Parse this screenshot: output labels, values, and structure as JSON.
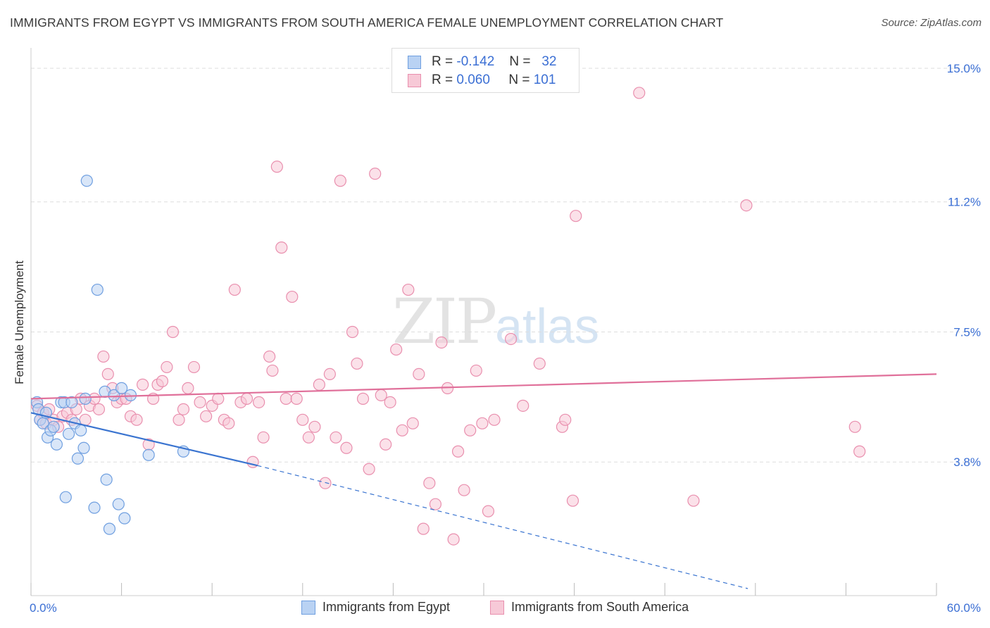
{
  "header": {
    "title": "IMMIGRANTS FROM EGYPT VS IMMIGRANTS FROM SOUTH AMERICA FEMALE UNEMPLOYMENT CORRELATION CHART",
    "source": "Source: ZipAtlas.com"
  },
  "watermark": {
    "zip": "ZIP",
    "atlas": "atlas"
  },
  "legend_top": {
    "rows": [
      {
        "r_label": "R =",
        "r_value": "-0.142",
        "n_label": "N =",
        "n_value": "32"
      },
      {
        "r_label": "R =",
        "r_value": "0.060",
        "n_label": "N =",
        "n_value": "101"
      }
    ]
  },
  "legend_bottom": {
    "items": [
      {
        "label": "Immigrants from Egypt"
      },
      {
        "label": "Immigrants from South America"
      }
    ]
  },
  "colors": {
    "egypt_fill": "#b9d2f3",
    "egypt_stroke": "#6f9fe0",
    "egypt_line": "#3a74d0",
    "sa_fill": "#f7c9d7",
    "sa_stroke": "#e98fae",
    "sa_line": "#e0709a",
    "grid": "#dddddd",
    "tick_label": "#3b6fd4"
  },
  "chart_data": {
    "type": "scatter",
    "title": "IMMIGRANTS FROM EGYPT VS IMMIGRANTS FROM SOUTH AMERICA FEMALE UNEMPLOYMENT CORRELATION CHART",
    "xlabel": "",
    "ylabel": "Female Unemployment",
    "xlim": [
      0,
      60
    ],
    "ylim": [
      0,
      15.5
    ],
    "x_tick_labels": [
      "0.0%",
      "60.0%"
    ],
    "y_ticks": [
      3.8,
      7.5,
      11.2,
      15.0
    ],
    "y_tick_labels": [
      "3.8%",
      "7.5%",
      "11.2%",
      "15.0%"
    ],
    "grid": true,
    "legend_position": "bottom",
    "series": [
      {
        "name": "Immigrants from Egypt",
        "points": [
          [
            0.4,
            5.5
          ],
          [
            0.5,
            5.3
          ],
          [
            0.6,
            5.0
          ],
          [
            0.8,
            4.9
          ],
          [
            1.0,
            5.2
          ],
          [
            1.1,
            4.5
          ],
          [
            1.3,
            4.7
          ],
          [
            1.5,
            4.8
          ],
          [
            1.7,
            4.3
          ],
          [
            2.0,
            5.5
          ],
          [
            2.2,
            5.5
          ],
          [
            2.5,
            4.6
          ],
          [
            2.7,
            5.5
          ],
          [
            2.9,
            4.9
          ],
          [
            3.1,
            3.9
          ],
          [
            3.3,
            4.7
          ],
          [
            3.5,
            4.2
          ],
          [
            3.7,
            11.8
          ],
          [
            2.3,
            2.8
          ],
          [
            4.2,
            2.5
          ],
          [
            4.4,
            8.7
          ],
          [
            4.9,
            5.8
          ],
          [
            5.0,
            3.3
          ],
          [
            5.2,
            1.9
          ],
          [
            5.5,
            5.7
          ],
          [
            5.8,
            2.6
          ],
          [
            6.0,
            5.9
          ],
          [
            6.2,
            2.2
          ],
          [
            6.6,
            5.7
          ],
          [
            7.8,
            4.0
          ],
          [
            10.1,
            4.1
          ],
          [
            3.6,
            5.6
          ]
        ],
        "trend": {
          "x": [
            0,
            15
          ],
          "y": [
            5.2,
            3.7
          ]
        },
        "trend_dashed": {
          "x": [
            15,
            47.5
          ],
          "y": [
            3.7,
            0.2
          ]
        }
      },
      {
        "name": "Immigrants from South America",
        "points": [
          [
            0.4,
            5.4
          ],
          [
            0.6,
            5.0
          ],
          [
            0.8,
            5.2
          ],
          [
            1.0,
            4.9
          ],
          [
            1.2,
            5.3
          ],
          [
            1.5,
            5.0
          ],
          [
            1.8,
            4.8
          ],
          [
            2.1,
            5.1
          ],
          [
            2.4,
            5.2
          ],
          [
            2.7,
            5.0
          ],
          [
            3.0,
            5.3
          ],
          [
            3.3,
            5.6
          ],
          [
            3.6,
            5.0
          ],
          [
            3.9,
            5.4
          ],
          [
            4.2,
            5.6
          ],
          [
            4.5,
            5.3
          ],
          [
            4.8,
            6.8
          ],
          [
            5.1,
            6.3
          ],
          [
            5.4,
            5.9
          ],
          [
            5.7,
            5.5
          ],
          [
            6.0,
            5.6
          ],
          [
            6.3,
            5.6
          ],
          [
            6.6,
            5.1
          ],
          [
            7.0,
            5.0
          ],
          [
            7.4,
            6.0
          ],
          [
            7.8,
            4.3
          ],
          [
            8.1,
            5.6
          ],
          [
            8.4,
            6.0
          ],
          [
            8.7,
            6.1
          ],
          [
            9.0,
            6.5
          ],
          [
            9.4,
            7.5
          ],
          [
            9.8,
            5.0
          ],
          [
            10.1,
            5.3
          ],
          [
            10.4,
            5.9
          ],
          [
            10.8,
            6.5
          ],
          [
            11.2,
            5.5
          ],
          [
            11.6,
            5.1
          ],
          [
            12.0,
            5.4
          ],
          [
            12.4,
            5.6
          ],
          [
            12.8,
            5.0
          ],
          [
            13.1,
            4.9
          ],
          [
            13.5,
            8.7
          ],
          [
            13.9,
            5.5
          ],
          [
            14.3,
            5.6
          ],
          [
            14.7,
            3.8
          ],
          [
            15.1,
            5.5
          ],
          [
            15.4,
            4.5
          ],
          [
            15.8,
            6.8
          ],
          [
            16.0,
            6.4
          ],
          [
            16.3,
            12.2
          ],
          [
            16.6,
            9.9
          ],
          [
            16.9,
            5.6
          ],
          [
            17.3,
            8.5
          ],
          [
            17.6,
            5.6
          ],
          [
            18.0,
            5.0
          ],
          [
            18.4,
            4.5
          ],
          [
            18.8,
            4.8
          ],
          [
            19.1,
            6.0
          ],
          [
            19.5,
            3.2
          ],
          [
            19.8,
            6.3
          ],
          [
            20.2,
            4.5
          ],
          [
            20.5,
            11.8
          ],
          [
            20.9,
            4.2
          ],
          [
            21.3,
            7.5
          ],
          [
            21.6,
            6.6
          ],
          [
            22.0,
            5.6
          ],
          [
            22.4,
            3.6
          ],
          [
            22.8,
            12.0
          ],
          [
            23.2,
            5.7
          ],
          [
            23.5,
            4.3
          ],
          [
            23.8,
            5.5
          ],
          [
            24.2,
            7.0
          ],
          [
            24.6,
            4.7
          ],
          [
            25.0,
            8.7
          ],
          [
            25.3,
            4.9
          ],
          [
            25.7,
            6.3
          ],
          [
            26.0,
            1.9
          ],
          [
            26.4,
            3.2
          ],
          [
            26.8,
            2.6
          ],
          [
            27.2,
            7.2
          ],
          [
            27.6,
            5.9
          ],
          [
            28.0,
            1.6
          ],
          [
            28.3,
            4.1
          ],
          [
            28.7,
            3.0
          ],
          [
            29.1,
            4.7
          ],
          [
            29.5,
            6.4
          ],
          [
            29.9,
            4.9
          ],
          [
            30.3,
            2.4
          ],
          [
            30.7,
            5.0
          ],
          [
            31.8,
            7.3
          ],
          [
            32.6,
            5.4
          ],
          [
            33.7,
            6.6
          ],
          [
            35.2,
            4.8
          ],
          [
            35.9,
            2.7
          ],
          [
            35.4,
            5.0
          ],
          [
            36.1,
            10.8
          ],
          [
            40.3,
            14.3
          ],
          [
            43.9,
            2.7
          ],
          [
            47.4,
            11.1
          ],
          [
            54.6,
            4.8
          ],
          [
            54.9,
            4.1
          ]
        ],
        "trend": {
          "x": [
            0,
            60
          ],
          "y": [
            5.6,
            6.3
          ]
        }
      }
    ]
  }
}
